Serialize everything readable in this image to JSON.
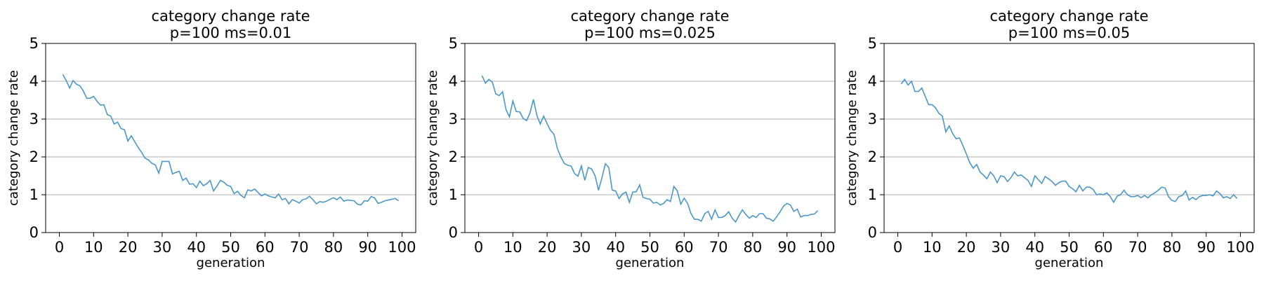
{
  "chart_data": [
    {
      "type": "line",
      "title": "category change rate\np=100 ms=0.01",
      "title_lines": [
        "category change rate",
        "p=100 ms=0.01"
      ],
      "xlabel": "generation",
      "ylabel": "category change rate",
      "xlim": [
        -4,
        104
      ],
      "ylim": [
        0,
        5
      ],
      "xticks": [
        0,
        10,
        20,
        30,
        40,
        50,
        60,
        70,
        80,
        90,
        100
      ],
      "yticks": [
        0,
        1,
        2,
        3,
        4,
        5
      ],
      "grid": "y",
      "line_color": "#4a97c8",
      "series": [
        {
          "x": [
            1,
            2,
            3,
            4,
            5,
            6,
            7,
            8,
            9,
            10,
            11,
            12,
            13,
            14,
            15,
            16,
            17,
            18,
            19,
            20,
            21,
            22,
            23,
            24,
            25,
            26,
            27,
            28,
            29,
            30,
            31,
            32,
            33,
            34,
            35,
            36,
            37,
            38,
            39,
            40,
            41,
            42,
            43,
            44,
            45,
            46,
            47,
            48,
            49,
            50,
            51,
            52,
            53,
            54,
            55,
            56,
            57,
            58,
            59,
            60,
            61,
            62,
            63,
            64,
            65,
            66,
            67,
            68,
            69,
            70,
            71,
            72,
            73,
            74,
            75,
            76,
            77,
            78,
            79,
            80,
            81,
            82,
            83,
            84,
            85,
            86,
            87,
            88,
            89,
            90,
            91,
            92,
            93,
            94,
            95,
            96,
            97,
            98,
            99
          ],
          "values": [
            4.18,
            4.02,
            3.82,
            4.02,
            3.92,
            3.88,
            3.74,
            3.55,
            3.55,
            3.6,
            3.47,
            3.37,
            3.38,
            3.12,
            3.08,
            2.87,
            2.92,
            2.75,
            2.72,
            2.42,
            2.56,
            2.4,
            2.25,
            2.12,
            1.97,
            1.92,
            1.83,
            1.79,
            1.57,
            1.88,
            1.88,
            1.88,
            1.55,
            1.59,
            1.62,
            1.38,
            1.44,
            1.28,
            1.29,
            1.19,
            1.36,
            1.24,
            1.29,
            1.38,
            1.1,
            1.23,
            1.38,
            1.33,
            1.25,
            1.22,
            1.03,
            1.09,
            0.98,
            0.92,
            1.13,
            1.1,
            1.15,
            1.06,
            0.97,
            1.02,
            0.97,
            0.94,
            0.92,
            1.02,
            0.87,
            0.9,
            0.76,
            0.87,
            0.83,
            0.78,
            0.87,
            0.89,
            0.96,
            0.87,
            0.76,
            0.82,
            0.8,
            0.83,
            0.88,
            0.92,
            0.87,
            0.94,
            0.83,
            0.86,
            0.85,
            0.84,
            0.75,
            0.73,
            0.84,
            0.83,
            0.95,
            0.92,
            0.77,
            0.8,
            0.84,
            0.86,
            0.88,
            0.9,
            0.84
          ]
        }
      ]
    },
    {
      "type": "line",
      "title": "category change rate\np=100 ms=0.025",
      "title_lines": [
        "category change rate",
        "p=100 ms=0.025"
      ],
      "xlabel": "generation",
      "ylabel": "category change rate",
      "xlim": [
        -4,
        104
      ],
      "ylim": [
        0,
        5
      ],
      "xticks": [
        0,
        10,
        20,
        30,
        40,
        50,
        60,
        70,
        80,
        90,
        100
      ],
      "yticks": [
        0,
        1,
        2,
        3,
        4,
        5
      ],
      "grid": "y",
      "line_color": "#4a97c8",
      "series": [
        {
          "x": [
            1,
            2,
            3,
            4,
            5,
            6,
            7,
            8,
            9,
            10,
            11,
            12,
            13,
            14,
            15,
            16,
            17,
            18,
            19,
            20,
            21,
            22,
            23,
            24,
            25,
            26,
            27,
            28,
            29,
            30,
            31,
            32,
            33,
            34,
            35,
            36,
            37,
            38,
            39,
            40,
            41,
            42,
            43,
            44,
            45,
            46,
            47,
            48,
            49,
            50,
            51,
            52,
            53,
            54,
            55,
            56,
            57,
            58,
            59,
            60,
            61,
            62,
            63,
            64,
            65,
            66,
            67,
            68,
            69,
            70,
            71,
            72,
            73,
            74,
            75,
            76,
            77,
            78,
            79,
            80,
            81,
            82,
            83,
            84,
            85,
            86,
            87,
            88,
            89,
            90,
            91,
            92,
            93,
            94,
            95,
            96,
            97,
            98,
            99
          ],
          "values": [
            4.15,
            3.95,
            4.05,
            3.98,
            3.67,
            3.62,
            3.72,
            3.25,
            3.06,
            3.48,
            3.2,
            3.19,
            3.02,
            2.96,
            3.16,
            3.52,
            3.1,
            2.87,
            3.08,
            2.88,
            2.7,
            2.6,
            2.22,
            2.0,
            1.83,
            1.78,
            1.76,
            1.56,
            1.49,
            1.76,
            1.38,
            1.72,
            1.68,
            1.5,
            1.12,
            1.45,
            1.82,
            1.72,
            1.12,
            1.1,
            0.9,
            1.02,
            1.07,
            0.8,
            1.07,
            1.08,
            1.26,
            0.93,
            0.9,
            0.88,
            0.78,
            0.8,
            0.73,
            0.77,
            0.87,
            0.82,
            1.22,
            1.1,
            0.75,
            0.91,
            0.77,
            0.5,
            0.35,
            0.35,
            0.3,
            0.5,
            0.56,
            0.35,
            0.6,
            0.4,
            0.4,
            0.45,
            0.55,
            0.38,
            0.28,
            0.45,
            0.6,
            0.48,
            0.38,
            0.45,
            0.4,
            0.5,
            0.5,
            0.38,
            0.36,
            0.3,
            0.42,
            0.55,
            0.7,
            0.77,
            0.73,
            0.56,
            0.62,
            0.41,
            0.45,
            0.45,
            0.48,
            0.49,
            0.58
          ]
        }
      ]
    },
    {
      "type": "line",
      "title": "category change rate\np=100 ms=0.05",
      "title_lines": [
        "category change rate",
        "p=100 ms=0.05"
      ],
      "xlabel": "generation",
      "ylabel": "category change rate",
      "xlim": [
        -4,
        104
      ],
      "ylim": [
        0,
        5
      ],
      "xticks": [
        0,
        10,
        20,
        30,
        40,
        50,
        60,
        70,
        80,
        90,
        100
      ],
      "yticks": [
        0,
        1,
        2,
        3,
        4,
        5
      ],
      "grid": "y",
      "line_color": "#4a97c8",
      "series": [
        {
          "x": [
            1,
            2,
            3,
            4,
            5,
            6,
            7,
            8,
            9,
            10,
            11,
            12,
            13,
            14,
            15,
            16,
            17,
            18,
            19,
            20,
            21,
            22,
            23,
            24,
            25,
            26,
            27,
            28,
            29,
            30,
            31,
            32,
            33,
            34,
            35,
            36,
            37,
            38,
            39,
            40,
            41,
            42,
            43,
            44,
            45,
            46,
            47,
            48,
            49,
            50,
            51,
            52,
            53,
            54,
            55,
            56,
            57,
            58,
            59,
            60,
            61,
            62,
            63,
            64,
            65,
            66,
            67,
            68,
            69,
            70,
            71,
            72,
            73,
            74,
            75,
            76,
            77,
            78,
            79,
            80,
            81,
            82,
            83,
            84,
            85,
            86,
            87,
            88,
            89,
            90,
            91,
            92,
            93,
            94,
            95,
            96,
            97,
            98,
            99
          ],
          "values": [
            3.93,
            4.05,
            3.9,
            4.0,
            3.73,
            3.73,
            3.82,
            3.6,
            3.38,
            3.38,
            3.3,
            3.15,
            3.08,
            2.66,
            2.82,
            2.62,
            2.48,
            2.5,
            2.3,
            2.08,
            1.85,
            1.7,
            1.8,
            1.6,
            1.52,
            1.42,
            1.6,
            1.5,
            1.32,
            1.5,
            1.48,
            1.35,
            1.45,
            1.6,
            1.5,
            1.52,
            1.45,
            1.38,
            1.22,
            1.5,
            1.4,
            1.3,
            1.48,
            1.42,
            1.35,
            1.25,
            1.32,
            1.36,
            1.36,
            1.22,
            1.16,
            1.08,
            1.25,
            1.1,
            1.2,
            1.2,
            1.14,
            1.0,
            1.02,
            1.0,
            1.05,
            0.95,
            0.8,
            0.96,
            1.0,
            1.12,
            1.0,
            0.95,
            0.95,
            0.98,
            0.92,
            0.98,
            0.92,
            1.0,
            1.05,
            1.12,
            1.2,
            1.18,
            0.95,
            0.85,
            0.82,
            0.95,
            0.98,
            1.1,
            0.86,
            0.93,
            0.87,
            0.95,
            0.98,
            0.98,
            1.0,
            0.97,
            1.1,
            1.03,
            0.92,
            0.95,
            0.9,
            1.0,
            0.9
          ]
        }
      ]
    }
  ]
}
